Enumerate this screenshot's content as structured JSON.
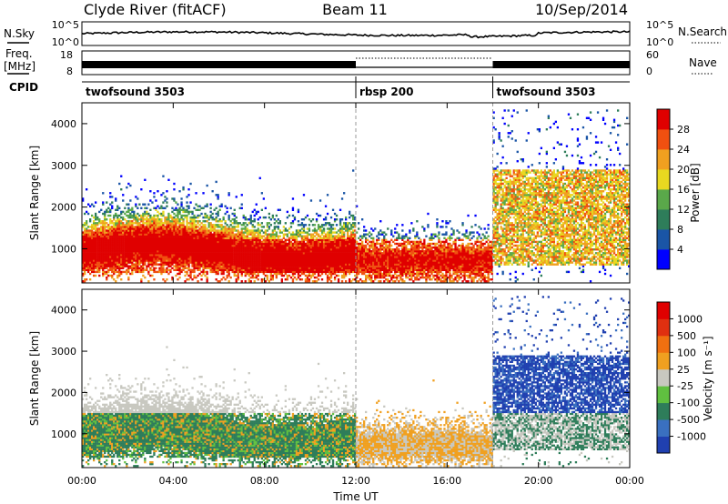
{
  "chart_data": {
    "type": "heatmap",
    "header": {
      "station": "Clyde River (fitACF)",
      "beam": "Beam 11",
      "date": "10/Sep/2014"
    },
    "x_axis": {
      "label": "Time UT",
      "range_hours": [
        0,
        24
      ],
      "tick_labels": [
        "00:00",
        "04:00",
        "08:00",
        "12:00",
        "16:00",
        "20:00",
        "00:00"
      ]
    },
    "nsky_panel": {
      "left_label": "N.Sky",
      "right_label": "N.Search",
      "left_ticks": [
        "10^5",
        "10^0"
      ],
      "right_ticks": [
        "10^5",
        "10^0"
      ]
    },
    "freq_panel": {
      "left_label": "Freq.",
      "left_units": "[MHz]",
      "right_label": "Nave",
      "left_ticks": [
        "18",
        "8"
      ],
      "right_ticks": [
        "60",
        "0"
      ]
    },
    "cpid": {
      "label": "CPID",
      "segments": [
        {
          "name": "twofsound 3503",
          "start": 0,
          "end": 12
        },
        {
          "name": "rbsp 200",
          "start": 12,
          "end": 18
        },
        {
          "name": "twofsound 3503",
          "start": 18,
          "end": 24
        }
      ]
    },
    "power_panel": {
      "ylabel": "Slant Range [km]",
      "y_ticks": [
        "1000",
        "2000",
        "3000",
        "4000"
      ],
      "ylim": [
        180,
        4500
      ],
      "colorbar_title": "Power [dB]",
      "colorbar_ticks": [
        "4",
        "8",
        "12",
        "16",
        "20",
        "24",
        "28"
      ],
      "colorbar_colors": [
        "#0000ff",
        "#1a55a6",
        "#2e7d5a",
        "#5aa84a",
        "#e8d820",
        "#f0a020",
        "#f05010",
        "#e00000"
      ]
    },
    "velocity_panel": {
      "ylabel": "Slant Range [km]",
      "y_ticks": [
        "1000",
        "2000",
        "3000",
        "4000"
      ],
      "ylim": [
        180,
        4500
      ],
      "colorbar_title": "Velocity [m s⁻¹]",
      "colorbar_ticks": [
        "1000",
        "500",
        "100",
        "25",
        "-25",
        "-100",
        "-500",
        "-1000"
      ],
      "colorbar_colors": [
        "#2040b0",
        "#3a70c0",
        "#2e7d5a",
        "#60c040",
        "#c8c8c0",
        "#f0a020",
        "#f07010",
        "#e03010",
        "#e00000"
      ]
    }
  }
}
